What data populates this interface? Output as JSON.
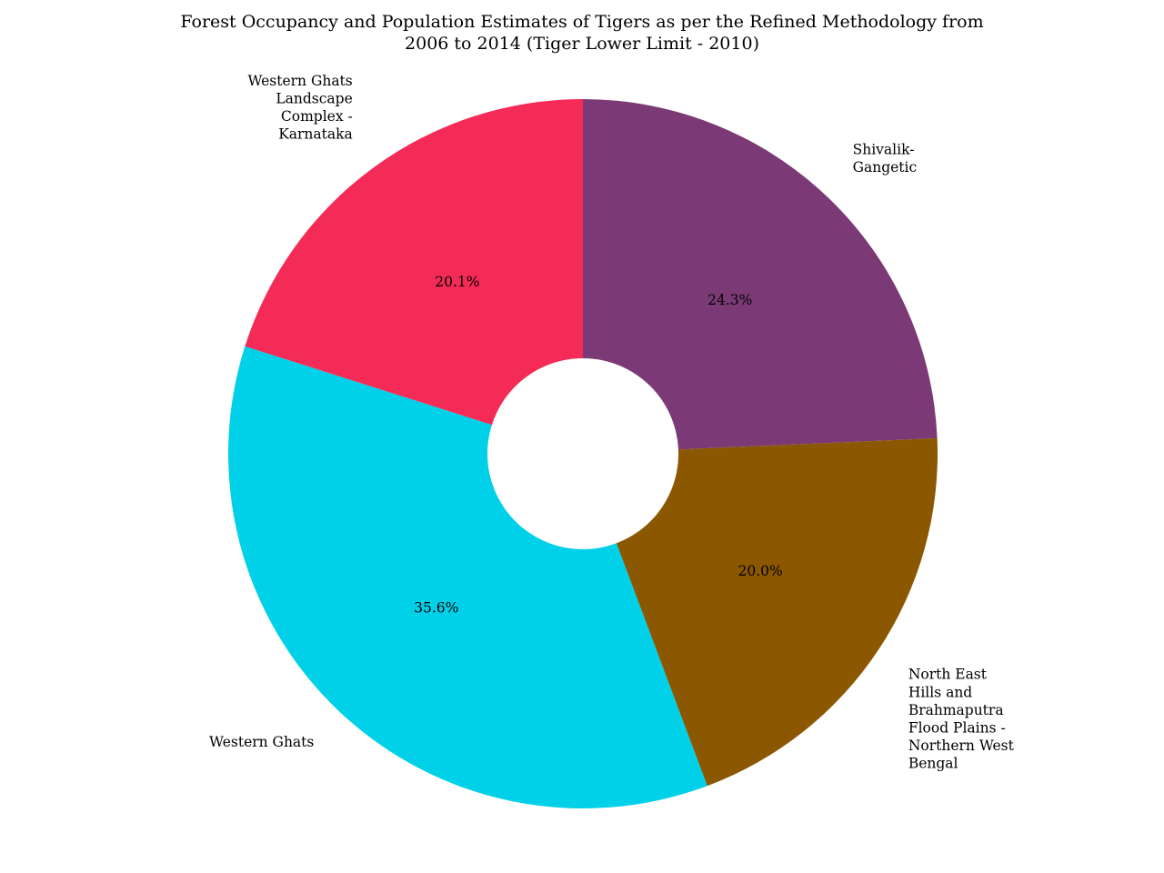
{
  "chart_data": {
    "type": "pie",
    "title_lines": [
      "Forest Occupancy and Population Estimates of Tigers as per the Refined Methodology from",
      "2006 to 2014 (Tiger Lower Limit - 2010)"
    ],
    "donut": true,
    "start_angle_deg": 90,
    "direction": "clockwise",
    "slices": [
      {
        "label_lines": [
          "Shivalik-",
          "Gangetic"
        ],
        "percent": 24.3,
        "percent_label": "24.3%",
        "color": "#7b3a76"
      },
      {
        "label_lines": [
          "North East",
          "Hills and",
          "Brahmaputra",
          "Flood Plains -",
          "Northern West",
          "Bengal"
        ],
        "percent": 20.0,
        "percent_label": "20.0%",
        "color": "#8b5700"
      },
      {
        "label_lines": [
          "Western Ghats"
        ],
        "percent": 35.6,
        "percent_label": "35.6%",
        "color": "#00d1e8"
      },
      {
        "label_lines": [
          "Western Ghats",
          "Landscape",
          "Complex -",
          "Karnataka"
        ],
        "percent": 20.1,
        "percent_label": "20.1%",
        "color": "#f42b56"
      }
    ]
  }
}
